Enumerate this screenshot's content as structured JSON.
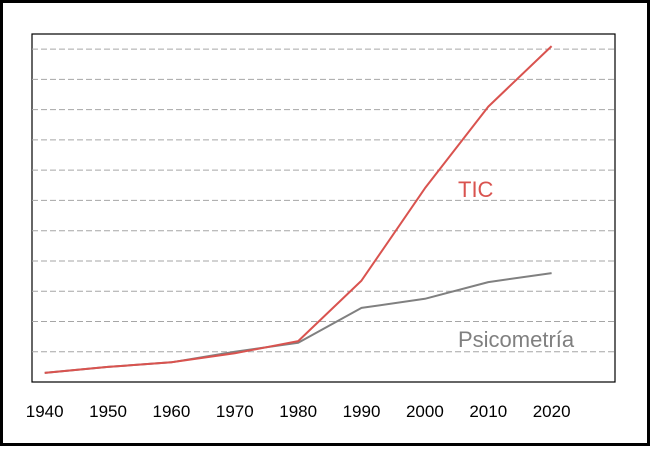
{
  "chart_data": {
    "type": "line",
    "x": [
      1940,
      1950,
      1960,
      1970,
      1980,
      1990,
      2000,
      2010,
      2020
    ],
    "xlim": [
      1938,
      2030
    ],
    "ylim": [
      0,
      11.5
    ],
    "grid": {
      "horizontal": true,
      "style": "dashed",
      "count": 11
    },
    "xticks": [
      "1940",
      "1950",
      "1960",
      "1970",
      "1980",
      "1990",
      "2000",
      "2010",
      "2020"
    ],
    "series": [
      {
        "name": "TIC",
        "color": "#d9534f",
        "values": [
          0.3,
          0.5,
          0.65,
          0.95,
          1.35,
          3.35,
          6.4,
          9.1,
          11.1
        ]
      },
      {
        "name": "Psicometría",
        "color": "#808080",
        "values": [
          0.3,
          0.5,
          0.65,
          1.0,
          1.3,
          2.45,
          2.75,
          3.3,
          3.6
        ]
      }
    ]
  }
}
